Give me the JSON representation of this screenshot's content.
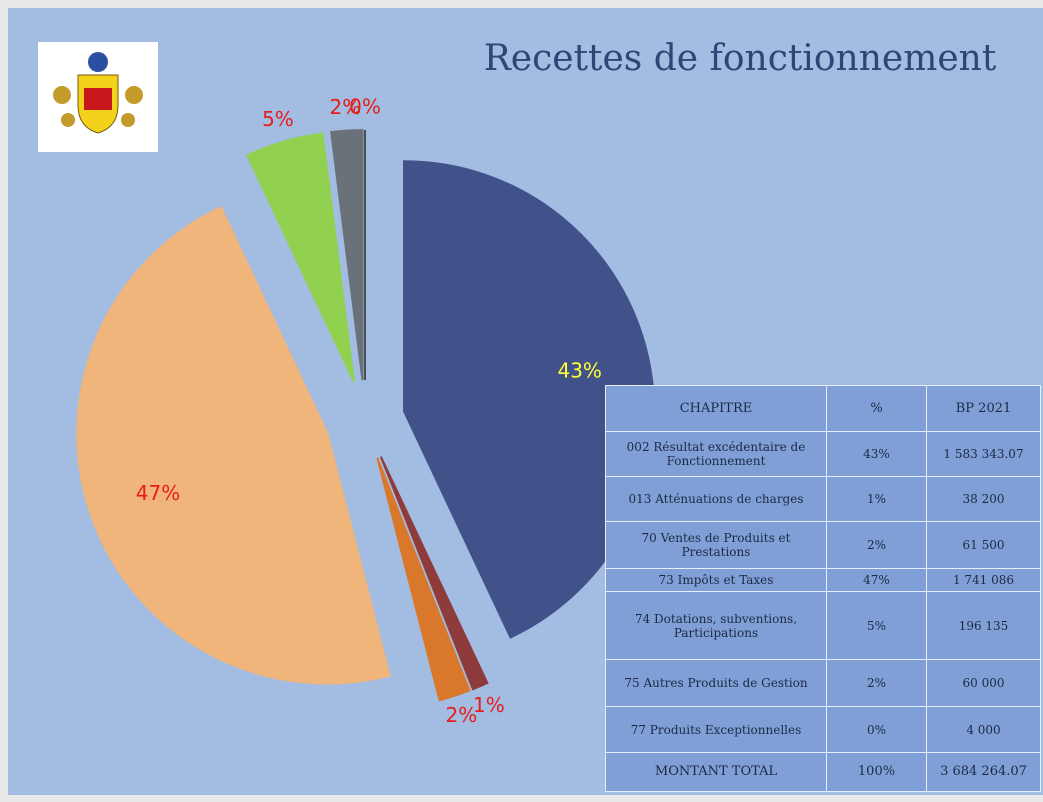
{
  "chart_data": {
    "type": "pie",
    "title": "Recettes de fonctionnement",
    "values": [
      43,
      1,
      2,
      47,
      5,
      2,
      0
    ],
    "value_labels": [
      "43%",
      "1%",
      "2%",
      "47%",
      "5%",
      "2%",
      "0%"
    ],
    "colors": [
      "#41528a",
      "#8e3b3c",
      "#d9782a",
      "#f0b57b",
      "#92d050",
      "#6a7178",
      "#4a4f55"
    ],
    "label_colors": [
      "#ffff33",
      "#e81c1c",
      "#e81c1c",
      "#e81c1c",
      "#e81c1c",
      "#e81c1c",
      "#e81c1c"
    ]
  },
  "table": {
    "header": [
      "CHAPITRE",
      "%",
      "BP 2021"
    ],
    "rows": [
      [
        "002 Résultat excédentaire de Fonctionnement",
        "43%",
        "1 583 343.07"
      ],
      [
        "013 Atténuations de charges",
        "1%",
        "38 200"
      ],
      [
        "70 Ventes de Produits et Prestations",
        "2%",
        "61 500"
      ],
      [
        "73 Impôts et Taxes",
        "47%",
        "1 741 086"
      ],
      [
        "74 Dotations, subventions, Participations",
        "5%",
        "196 135"
      ],
      [
        "75 Autres Produits de Gestion",
        "2%",
        "60 000"
      ],
      [
        "77 Produits Exceptionnelles",
        "0%",
        "4 000"
      ],
      [
        "MONTANT TOTAL",
        "100%",
        "3 684 264.07"
      ]
    ]
  }
}
